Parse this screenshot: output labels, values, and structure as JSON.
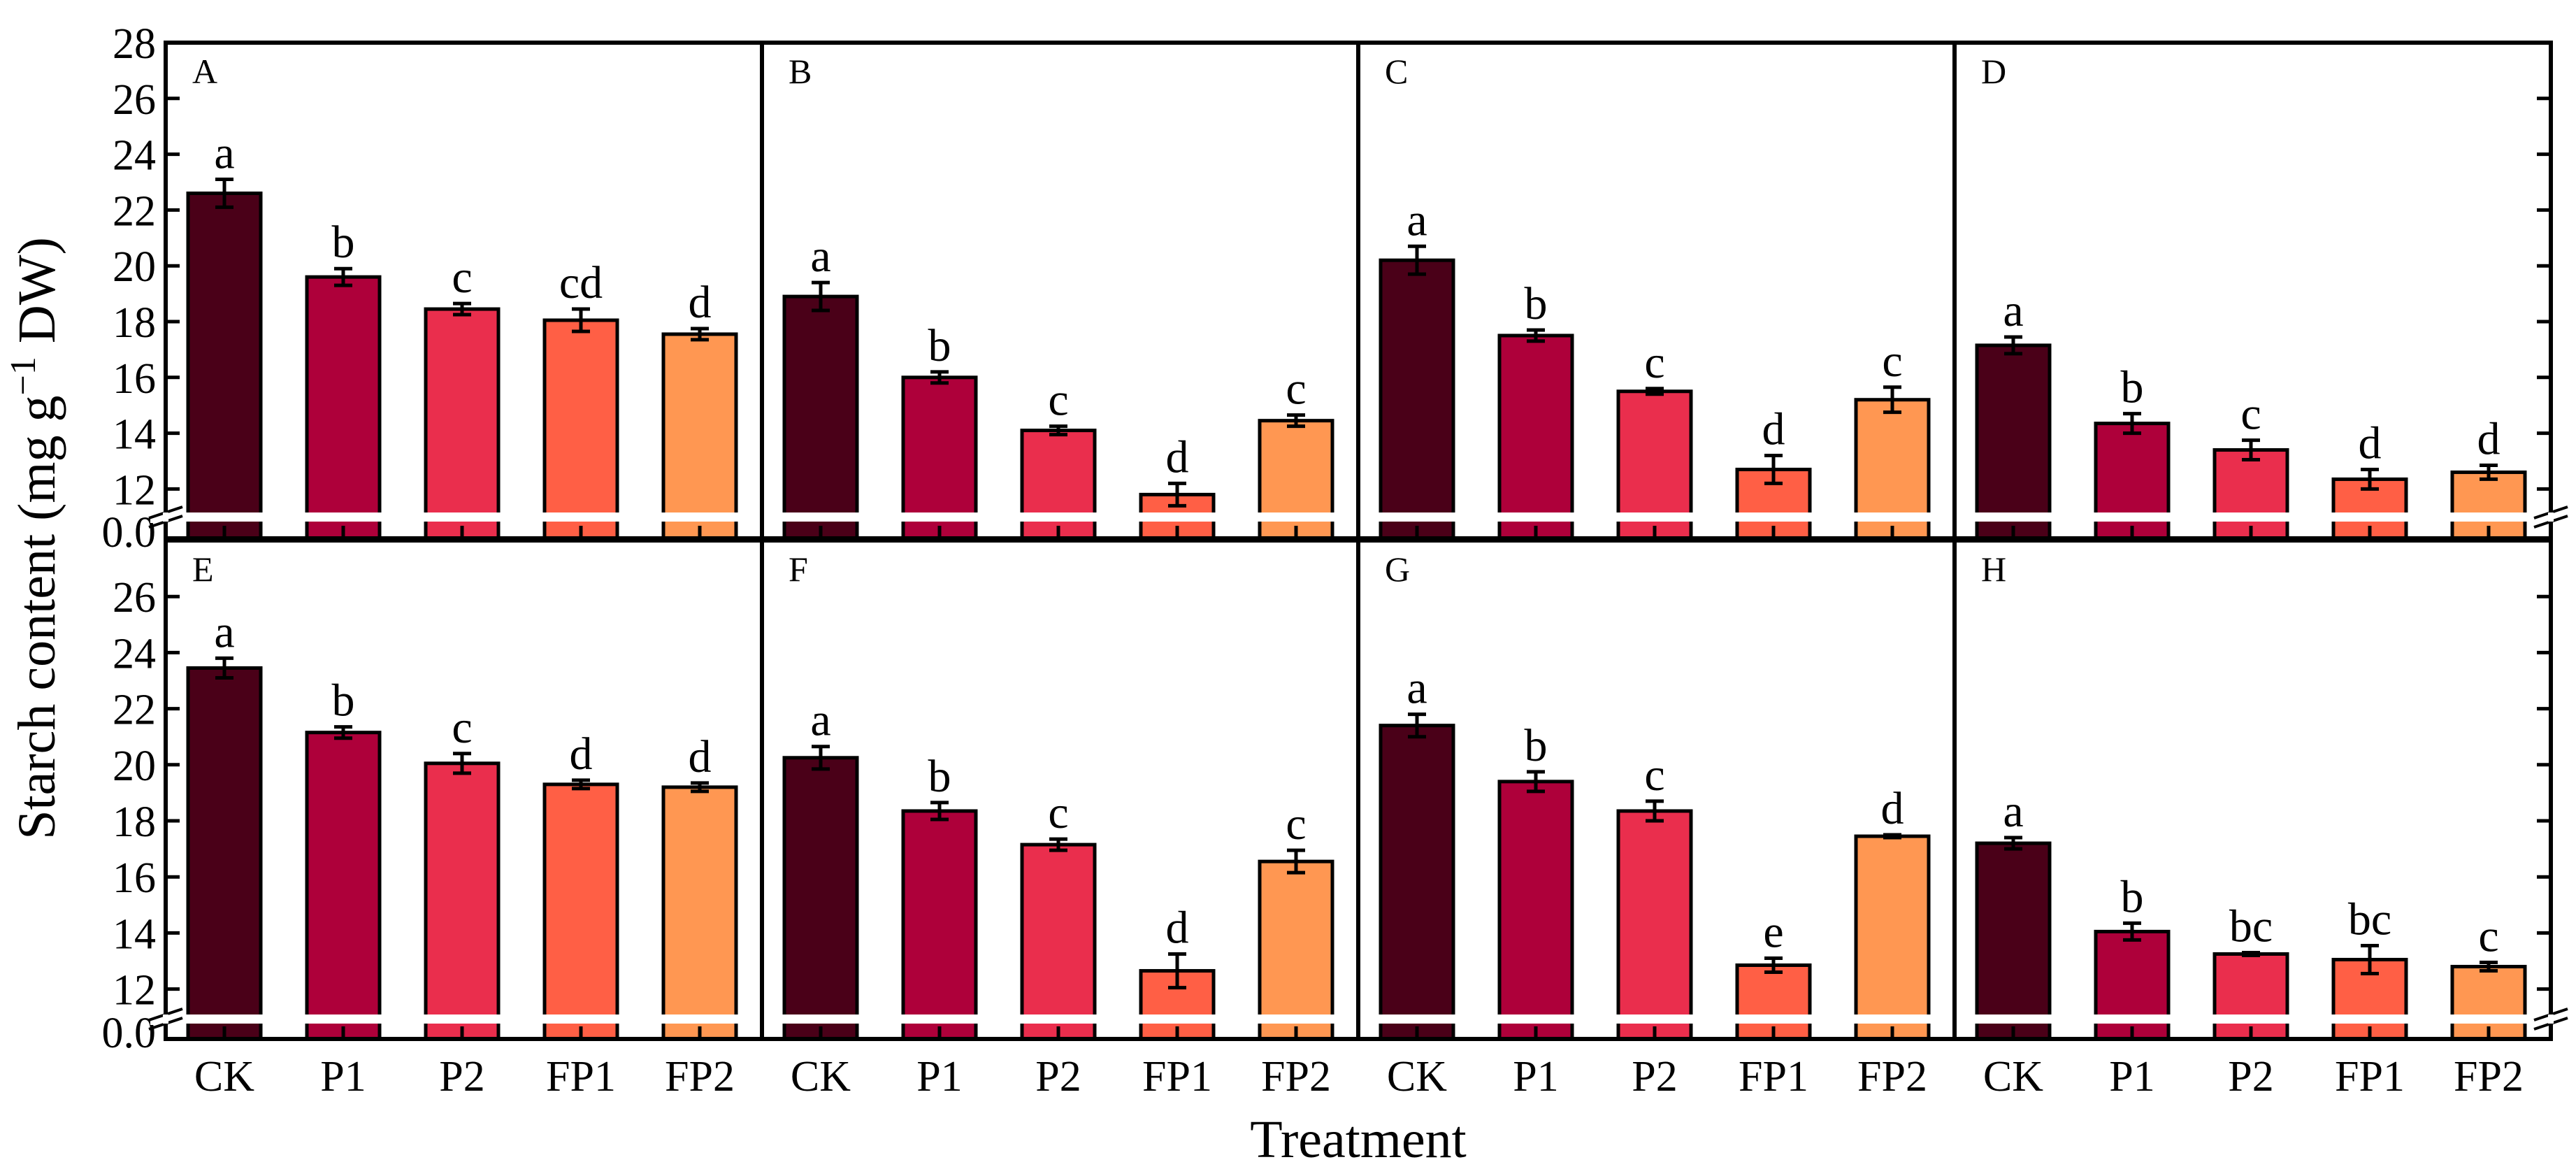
{
  "chart_data": {
    "type": "bar",
    "ylabel": "Starch content (mg g⁻¹ DW)",
    "ylabel_main": "Starch content (mg g",
    "ylabel_sup": "−1",
    "ylabel_end": " DW)",
    "xlabel": "Treatment",
    "categories": [
      "CK",
      "P1",
      "P2",
      "FP1",
      "FP2"
    ],
    "colors": [
      "#4A0018",
      "#AE003A",
      "#EA2E4D",
      "#FF5F45",
      "#FF9752"
    ],
    "axis_break": {
      "lower": "0.0",
      "upper_start": 11
    },
    "rows": [
      {
        "ylim": [
          11,
          28
        ],
        "yticks": [
          "28",
          "26",
          "24",
          "22",
          "20",
          "18",
          "16",
          "14",
          "12"
        ],
        "ytick_values": [
          28,
          26,
          24,
          22,
          20,
          18,
          16,
          14,
          12
        ]
      },
      {
        "ylim": [
          11,
          28
        ],
        "yticks": [
          "26",
          "24",
          "22",
          "20",
          "18",
          "16",
          "14",
          "12"
        ],
        "ytick_values": [
          26,
          24,
          22,
          20,
          18,
          16,
          14,
          12
        ]
      }
    ],
    "panels": [
      {
        "label": "A",
        "values": [
          22.6,
          19.6,
          18.45,
          18.05,
          17.55
        ],
        "errors": [
          0.5,
          0.3,
          0.2,
          0.4,
          0.2
        ],
        "letters": [
          "a",
          "b",
          "c",
          "cd",
          "d"
        ]
      },
      {
        "label": "B",
        "values": [
          18.9,
          16.0,
          14.1,
          11.8,
          14.45
        ],
        "errors": [
          0.5,
          0.2,
          0.15,
          0.4,
          0.2
        ],
        "letters": [
          "a",
          "b",
          "c",
          "d",
          "c"
        ]
      },
      {
        "label": "C",
        "values": [
          20.2,
          17.5,
          15.5,
          12.7,
          15.2
        ],
        "errors": [
          0.5,
          0.2,
          0.1,
          0.5,
          0.45
        ],
        "letters": [
          "a",
          "b",
          "c",
          "d",
          "c"
        ]
      },
      {
        "label": "D",
        "values": [
          17.15,
          14.35,
          13.4,
          12.35,
          12.6
        ],
        "errors": [
          0.3,
          0.35,
          0.35,
          0.35,
          0.25
        ],
        "letters": [
          "a",
          "b",
          "c",
          "d",
          "d"
        ]
      },
      {
        "label": "E",
        "values": [
          23.45,
          21.15,
          20.05,
          19.3,
          19.2
        ],
        "errors": [
          0.35,
          0.2,
          0.35,
          0.15,
          0.15
        ],
        "letters": [
          "a",
          "b",
          "c",
          "d",
          "d"
        ]
      },
      {
        "label": "F",
        "values": [
          20.25,
          18.35,
          17.15,
          12.65,
          16.55
        ],
        "errors": [
          0.4,
          0.3,
          0.2,
          0.6,
          0.4
        ],
        "letters": [
          "a",
          "b",
          "c",
          "d",
          "c"
        ]
      },
      {
        "label": "G",
        "values": [
          21.4,
          19.4,
          18.35,
          12.85,
          17.45
        ],
        "errors": [
          0.4,
          0.35,
          0.35,
          0.25,
          0.05
        ],
        "letters": [
          "a",
          "b",
          "c",
          "e",
          "d"
        ]
      },
      {
        "label": "H",
        "values": [
          17.2,
          14.05,
          13.25,
          13.05,
          12.8
        ],
        "errors": [
          0.2,
          0.3,
          0.05,
          0.5,
          0.15
        ],
        "letters": [
          "a",
          "b",
          "bc",
          "bc",
          "c"
        ]
      }
    ]
  }
}
